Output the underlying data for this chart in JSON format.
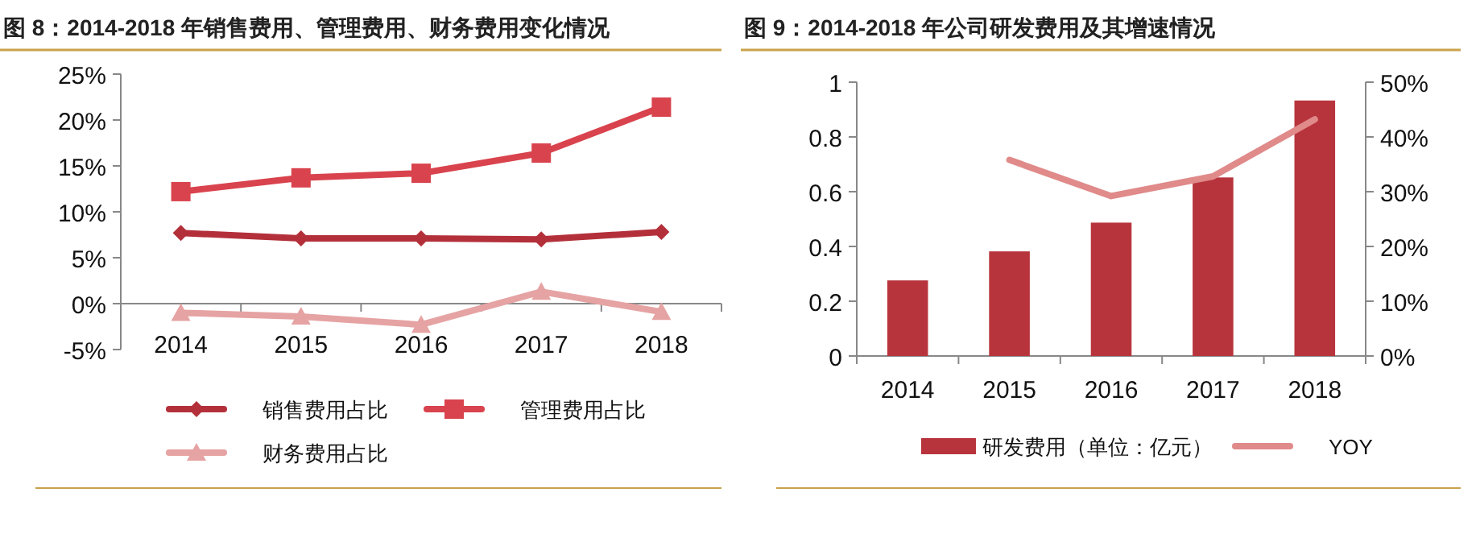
{
  "chart_data": [
    {
      "type": "line",
      "title": "图 8：2014-2018 年销售费用、管理费用、财务费用变化情况",
      "categories": [
        "2014",
        "2015",
        "2016",
        "2017",
        "2018"
      ],
      "series": [
        {
          "name": "销售费用占比",
          "color": "#b3303a",
          "marker": "diamond",
          "values": [
            7.7,
            7.1,
            7.1,
            7.0,
            7.8
          ]
        },
        {
          "name": "管理费用占比",
          "color": "#d9434d",
          "marker": "square",
          "values": [
            12.2,
            13.7,
            14.2,
            16.4,
            21.4
          ]
        },
        {
          "name": "财务费用占比",
          "color": "#e6a3a3",
          "marker": "triangle",
          "values": [
            -1.0,
            -1.4,
            -2.3,
            1.3,
            -0.9
          ]
        }
      ],
      "ylim": [
        -5,
        25
      ],
      "yticks": [
        {
          "value": -5,
          "label": "-5%"
        },
        {
          "value": 0,
          "label": "0%"
        },
        {
          "value": 5,
          "label": "5%"
        },
        {
          "value": 10,
          "label": "10%"
        },
        {
          "value": 15,
          "label": "15%"
        },
        {
          "value": 20,
          "label": "20%"
        },
        {
          "value": 25,
          "label": "25%"
        }
      ],
      "grid": false,
      "legend": "bottom",
      "line_style": "solid"
    },
    {
      "type": "bar",
      "title": "图 9：2014-2018 年公司研发费用及其增速情况",
      "categories": [
        "2014",
        "2015",
        "2016",
        "2017",
        "2018"
      ],
      "series": [
        {
          "name": "研发费用（单位：亿元）",
          "color": "#b8343c",
          "values": [
            0.276,
            0.382,
            0.487,
            0.652,
            0.933
          ]
        },
        {
          "name": "YOY",
          "type": "line",
          "axis": "y2",
          "color": "#e08a8a",
          "values": [
            null,
            35.8,
            29.2,
            32.8,
            43.2
          ]
        }
      ],
      "ylim": [
        0,
        1
      ],
      "yticks": [
        0,
        0.2,
        0.4,
        0.6,
        0.8,
        1
      ],
      "y2lim": [
        0,
        50
      ],
      "y2ticks": [
        {
          "value": 0,
          "label": "0%"
        },
        {
          "value": 10,
          "label": "10%"
        },
        {
          "value": 20,
          "label": "20%"
        },
        {
          "value": 30,
          "label": "30%"
        },
        {
          "value": 40,
          "label": "40%"
        },
        {
          "value": 50,
          "label": "50%"
        }
      ],
      "grid": false,
      "legend": "bottom",
      "marker": "none",
      "line_style": "solid"
    }
  ]
}
